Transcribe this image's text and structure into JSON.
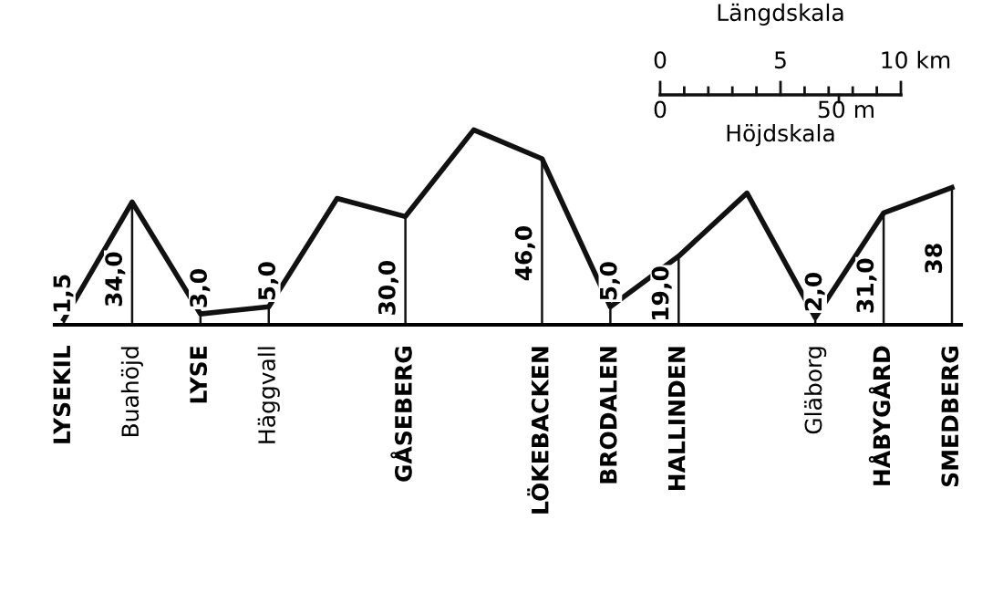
{
  "chart_data": {
    "type": "line",
    "categories": [
      "LYSEKIL",
      "Buahöjd",
      "LYSE",
      "Häggvall",
      null,
      "GÅSEBERG",
      null,
      "LÖKEBACKEN",
      "BRODALEN",
      "HALLINDEN",
      null,
      "Gläborg",
      "HÅBYGÅRD",
      "SMEDBERG"
    ],
    "values": [
      1.5,
      34,
      3,
      5,
      35,
      30,
      54,
      46,
      5,
      19,
      36.5,
      2,
      31,
      38
    ],
    "value_labels": [
      "1,5",
      "34,0",
      "3,0",
      "5,0",
      null,
      "30,0",
      null,
      "46,0",
      "5,0",
      "19,0",
      null,
      "2,0",
      "31,0",
      "38"
    ],
    "color": "#111111",
    "line_style": "solid",
    "marker": "none",
    "tick_labels": "x",
    "annotations": [
      "Längdskala",
      "0",
      "5",
      "10 km",
      "0",
      "50 m",
      "Höjdskala"
    ]
  }
}
